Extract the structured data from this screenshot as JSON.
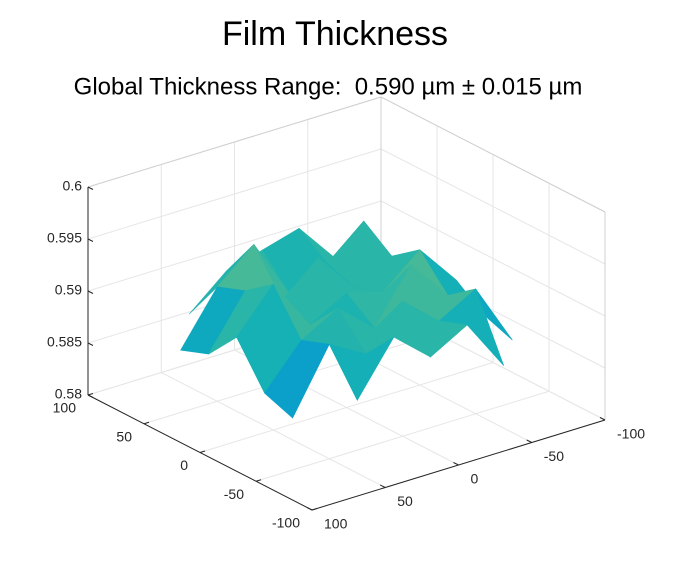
{
  "chart_data": {
    "type": "surface",
    "title": "Film Thickness",
    "subtitle": "Global Thickness Range:  0.590 µm ± 0.015 µm",
    "x": [
      -100,
      -75,
      -50,
      -25,
      0,
      25,
      50,
      75,
      100
    ],
    "y": [
      -100,
      -75,
      -50,
      -25,
      0,
      25,
      50,
      75,
      100
    ],
    "z": [
      [
        null,
        null,
        null,
        null,
        0.585,
        null,
        null,
        null,
        null
      ],
      [
        null,
        null,
        0.586,
        0.591,
        0.589,
        0.592,
        0.587,
        null,
        null
      ],
      [
        null,
        0.586,
        0.592,
        0.59,
        0.593,
        0.589,
        0.591,
        0.585,
        null
      ],
      [
        null,
        0.587,
        0.59,
        0.594,
        0.589,
        0.592,
        0.59,
        0.586,
        null
      ],
      [
        0.585,
        0.589,
        0.593,
        0.59,
        0.591,
        0.589,
        0.594,
        0.59,
        0.584
      ],
      [
        null,
        0.586,
        0.591,
        0.589,
        0.593,
        0.59,
        0.592,
        0.587,
        null
      ],
      [
        null,
        0.587,
        0.593,
        0.59,
        0.588,
        0.594,
        0.591,
        0.586,
        null
      ],
      [
        null,
        null,
        0.588,
        0.592,
        0.591,
        0.59,
        0.587,
        null,
        null
      ],
      [
        null,
        null,
        null,
        null,
        0.586,
        null,
        null,
        null,
        null
      ]
    ],
    "xlim": [
      -100,
      100
    ],
    "xticks": [
      -100,
      -50,
      0,
      50,
      100
    ],
    "ylim": [
      -100,
      100
    ],
    "yticks": [
      -100,
      -50,
      0,
      50,
      100
    ],
    "zlim": [
      0.58,
      0.6
    ],
    "zticks": [
      0.58,
      0.585,
      0.59,
      0.595,
      0.6
    ],
    "grid": true,
    "colormap": "parula"
  }
}
